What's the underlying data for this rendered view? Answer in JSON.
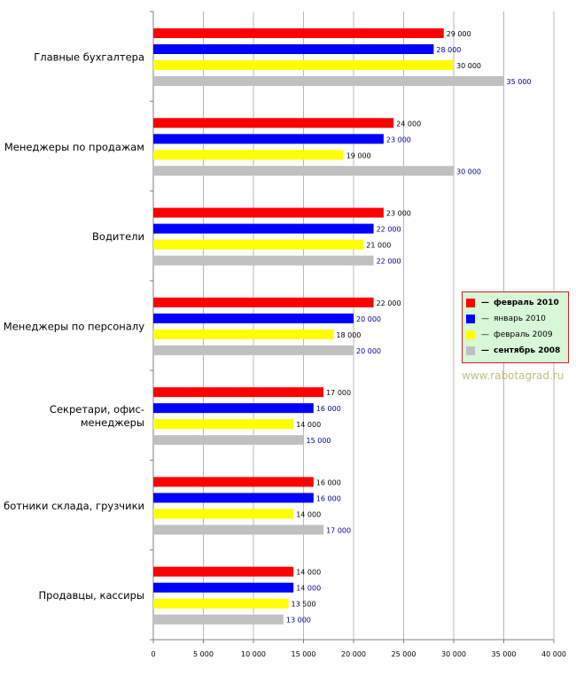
{
  "chart_data": {
    "type": "bar",
    "orientation": "horizontal",
    "categories": [
      [
        "Главные бухгалтера"
      ],
      [
        "Менеджеры по продажам"
      ],
      [
        "Водители"
      ],
      [
        "Менеджеры по персоналу"
      ],
      [
        "Секретари, офис-",
        "менеджеры"
      ],
      [
        "ботники склада, грузчики"
      ],
      [
        "Продавцы, кассиры"
      ]
    ],
    "series": [
      {
        "name": "февраль 2010",
        "color": "#ff0000",
        "label_color": "#000000",
        "values": [
          29000,
          24000,
          23000,
          22000,
          17000,
          16000,
          14000
        ],
        "labels": [
          "29 000",
          "24 000",
          "23 000",
          "22 000",
          "17 000",
          "16 000",
          "14 000"
        ]
      },
      {
        "name": "январь 2010",
        "color": "#0000ff",
        "label_color": "#000099",
        "values": [
          28000,
          23000,
          22000,
          20000,
          16000,
          16000,
          14000
        ],
        "labels": [
          "28 000",
          "23 000",
          "22 000",
          "20 000",
          "16 000",
          "16 000",
          "14 000"
        ]
      },
      {
        "name": "февраль 2009",
        "color": "#ffff00",
        "label_color": "#000000",
        "values": [
          30000,
          19000,
          21000,
          18000,
          14000,
          14000,
          13500
        ],
        "labels": [
          "30 000",
          "19 000",
          "21 000",
          "18 000",
          "14 000",
          "14 000",
          "13 500"
        ]
      },
      {
        "name": "сентябрь 2008",
        "color": "#c0c0c0",
        "label_color": "#000099",
        "values": [
          35000,
          30000,
          22000,
          20000,
          15000,
          17000,
          13000
        ],
        "labels": [
          "35 000",
          "30 000",
          "22 000",
          "20 000",
          "15 000",
          "17 000",
          "13 000"
        ]
      }
    ],
    "xlim": [
      0,
      40000
    ],
    "xticks": [
      0,
      5000,
      10000,
      15000,
      20000,
      25000,
      30000,
      35000,
      40000
    ],
    "xtick_labels": [
      "0",
      "5 000",
      "10 000",
      "15 000",
      "20 000",
      "25 000",
      "30 000",
      "35 000",
      "40 000"
    ],
    "grid": true,
    "legend_position": "right"
  },
  "legend": {
    "items": [
      {
        "label": "февраль 2010",
        "color": "#ff0000",
        "bold": true
      },
      {
        "label": "январь 2010",
        "color": "#0000ff",
        "bold": false
      },
      {
        "label": "февраль 2009",
        "color": "#ffff00",
        "bold": false
      },
      {
        "label": "сентябрь 2008",
        "color": "#c0c0c0",
        "bold": true
      }
    ],
    "dash": "—"
  },
  "watermark": "www.rabotagrad.ru"
}
